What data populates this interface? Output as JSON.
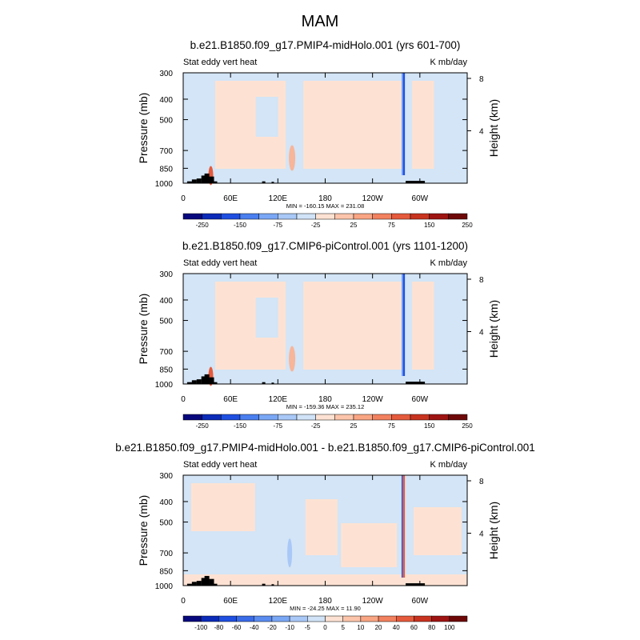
{
  "figure": {
    "title": "MAM"
  },
  "chart_data": [
    {
      "type": "heatmap",
      "title": "b.e21.B1850.f09_g17.PMIP4-midHolo.001 (yrs 601-700)",
      "left_label": "Stat eddy vert heat",
      "right_label": "K mb/day",
      "ylabel": "Pressure (mb)",
      "ylabel_right": "Height (km)",
      "x_ticks": [
        "0",
        "60E",
        "120E",
        "180",
        "120W",
        "60W"
      ],
      "x_tick_values": [
        0,
        60,
        120,
        180,
        240,
        300
      ],
      "xlim": [
        0,
        360
      ],
      "y_ticks": [
        "300",
        "400",
        "500",
        "700",
        "850",
        "1000"
      ],
      "y_tick_values": [
        300,
        400,
        500,
        700,
        850,
        1000
      ],
      "ylim": [
        1000,
        300
      ],
      "y_right_ticks": [
        "4",
        "8"
      ],
      "y_right_tick_values": [
        4,
        8
      ],
      "stats": "MIN = -160.15  MAX = 231.08",
      "colorbar": {
        "labels": [
          "-250",
          "-150",
          "-75",
          "-25",
          "25",
          "75",
          "150",
          "250"
        ],
        "colors": [
          "#08087d",
          "#0b2bb8",
          "#1f4fe0",
          "#4a7fef",
          "#7aa7f5",
          "#a9c8f7",
          "#d0e3f7",
          "#fde2d3",
          "#fcc5ab",
          "#f9a584",
          "#f2815f",
          "#e55a3c",
          "#c8331f",
          "#9e1412",
          "#6e0808"
        ]
      }
    },
    {
      "type": "heatmap",
      "title": "b.e21.B1850.f09_g17.CMIP6-piControl.001 (yrs 1101-1200)",
      "left_label": "Stat eddy vert heat",
      "right_label": "K mb/day",
      "ylabel": "Pressure (mb)",
      "ylabel_right": "Height (km)",
      "x_ticks": [
        "0",
        "60E",
        "120E",
        "180",
        "120W",
        "60W"
      ],
      "x_tick_values": [
        0,
        60,
        120,
        180,
        240,
        300
      ],
      "xlim": [
        0,
        360
      ],
      "y_ticks": [
        "300",
        "400",
        "500",
        "700",
        "850",
        "1000"
      ],
      "y_tick_values": [
        300,
        400,
        500,
        700,
        850,
        1000
      ],
      "ylim": [
        1000,
        300
      ],
      "y_right_ticks": [
        "4",
        "8"
      ],
      "y_right_tick_values": [
        4,
        8
      ],
      "stats": "MIN = -159.36  MAX = 235.12",
      "colorbar": {
        "labels": [
          "-250",
          "-150",
          "-75",
          "-25",
          "25",
          "75",
          "150",
          "250"
        ],
        "colors": [
          "#08087d",
          "#0b2bb8",
          "#1f4fe0",
          "#4a7fef",
          "#7aa7f5",
          "#a9c8f7",
          "#d0e3f7",
          "#fde2d3",
          "#fcc5ab",
          "#f9a584",
          "#f2815f",
          "#e55a3c",
          "#c8331f",
          "#9e1412",
          "#6e0808"
        ]
      }
    },
    {
      "type": "heatmap",
      "title": "b.e21.B1850.f09_g17.PMIP4-midHolo.001 - b.e21.B1850.f09_g17.CMIP6-piControl.001",
      "left_label": "Stat eddy vert heat",
      "right_label": "K mb/day",
      "ylabel": "Pressure (mb)",
      "ylabel_right": "Height (km)",
      "x_ticks": [
        "0",
        "60E",
        "120E",
        "180",
        "120W",
        "60W"
      ],
      "x_tick_values": [
        0,
        60,
        120,
        180,
        240,
        300
      ],
      "xlim": [
        0,
        360
      ],
      "y_ticks": [
        "300",
        "400",
        "500",
        "700",
        "850",
        "1000"
      ],
      "y_tick_values": [
        300,
        400,
        500,
        700,
        850,
        1000
      ],
      "ylim": [
        1000,
        300
      ],
      "y_right_ticks": [
        "4",
        "8"
      ],
      "y_right_tick_values": [
        4,
        8
      ],
      "stats": "MIN = -24.25  MAX = 11.90",
      "colorbar": {
        "labels": [
          "-100",
          "-80",
          "-60",
          "-40",
          "-20",
          "-10",
          "-5",
          "0",
          "5",
          "10",
          "20",
          "40",
          "60",
          "80",
          "100"
        ],
        "colors": [
          "#08087d",
          "#0b2bb8",
          "#1f4fe0",
          "#3a6be8",
          "#5a8cf0",
          "#7aa7f5",
          "#a9c8f7",
          "#d0e3f7",
          "#fde2d3",
          "#fcc5ab",
          "#f9a584",
          "#f2815f",
          "#e55a3c",
          "#c8331f",
          "#9e1412",
          "#6e0808"
        ]
      }
    }
  ]
}
